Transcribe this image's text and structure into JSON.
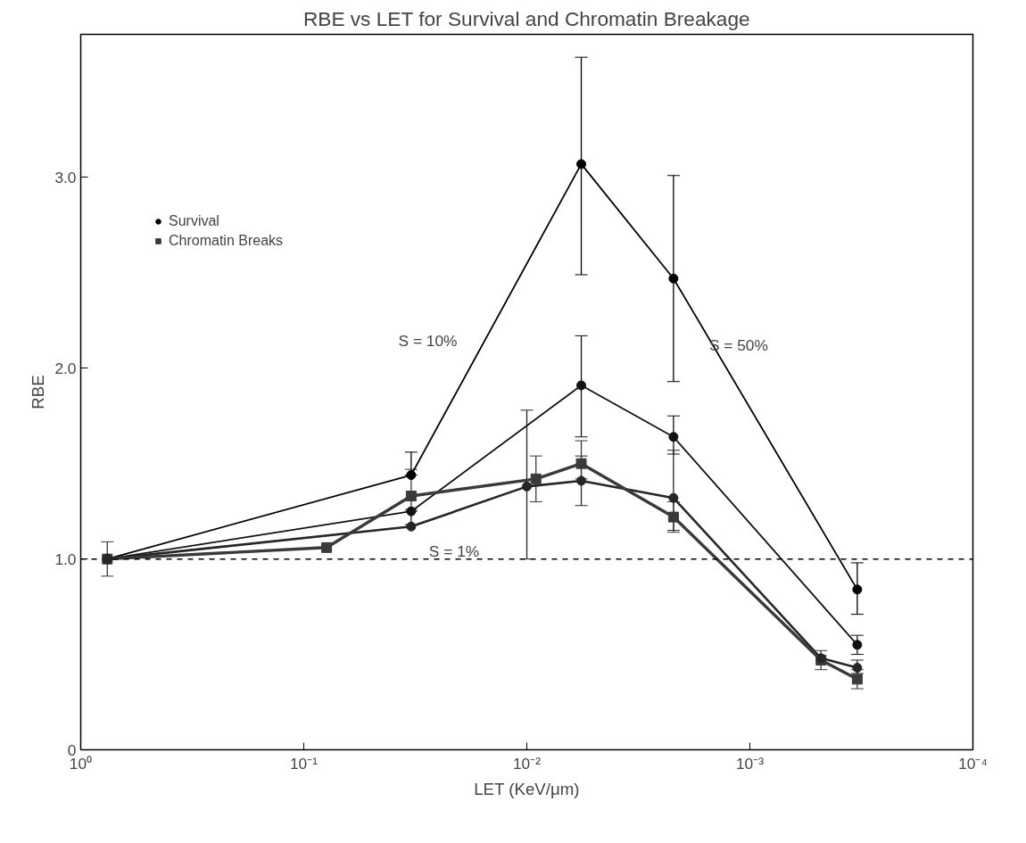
{
  "chart_data": {
    "type": "line",
    "title": "RBE vs LET for Survival and Chromatin Breakage",
    "xlabel": "LET (KeV/μm)",
    "ylabel": "RBE",
    "log": "x",
    "xlim": [
      1,
      0.0001
    ],
    "xticks": [
      {
        "value": 1,
        "label": "10⁰"
      },
      {
        "value": 0.1,
        "label": "10⁻¹"
      },
      {
        "value": 0.01,
        "label": "10⁻²"
      },
      {
        "value": 0.001,
        "label": "10⁻³"
      },
      {
        "value": 0.0001,
        "label": "10⁻⁴"
      }
    ],
    "ylim": [
      0,
      3.75
    ],
    "yticks": [
      0,
      {
        "value": 1,
        "label": "1.0"
      },
      {
        "value": 2,
        "label": "2.0"
      },
      {
        "value": 3,
        "label": "3.0"
      }
    ],
    "grid": false,
    "legend": "top left",
    "series": [
      {
        "name": "Survival",
        "color": "#000000",
        "marker": "circle",
        "x": [
          0.76,
          0.033,
          0.0057,
          0.0022,
          0.00033
        ],
        "values": [
          1.0,
          1.44,
          3.07,
          2.47,
          0.84
        ],
        "errors": [
          null,
          [
            1.44,
            1.56
          ],
          [
            2.49,
            3.63
          ],
          [
            1.93,
            3.01
          ],
          [
            0.71,
            0.98
          ]
        ]
      },
      {
        "color": "#121212",
        "marker": "circle",
        "x": [
          0.76,
          0.033,
          0.0057,
          0.0022,
          0.00033
        ],
        "values": [
          1.0,
          1.25,
          1.91,
          1.64,
          0.55
        ],
        "errors": [
          null,
          [
            1.18,
            1.25
          ],
          [
            1.64,
            2.17
          ],
          [
            1.55,
            1.75
          ],
          [
            0.5,
            0.6
          ]
        ]
      },
      {
        "color": "#262626",
        "marker": "circle",
        "x": [
          0.76,
          0.033,
          0.01,
          0.0057,
          0.0022,
          0.00048,
          0.00033
        ],
        "values": [
          1.0,
          1.17,
          1.38,
          1.41,
          1.32,
          0.48,
          0.43
        ],
        "errors": [
          null,
          null,
          [
            1.0,
            1.78
          ],
          [
            1.28,
            1.54
          ],
          [
            1.15,
            1.57
          ],
          null,
          [
            0.4,
            0.47
          ]
        ]
      },
      {
        "name": "Chromatin Breaks",
        "color": "#3a3a3a",
        "marker": "square",
        "x": [
          0.76,
          0.079,
          0.033,
          0.0091,
          0.0057,
          0.0022,
          0.00048,
          0.00033
        ],
        "values": [
          1.0,
          1.06,
          1.33,
          1.42,
          1.5,
          1.22,
          0.47,
          0.37
        ],
        "errors": [
          [
            0.91,
            1.09
          ],
          null,
          [
            1.26,
            1.47
          ],
          [
            1.3,
            1.54
          ],
          [
            1.42,
            1.62
          ],
          [
            1.14,
            1.3
          ],
          [
            0.42,
            0.52
          ],
          [
            0.32,
            0.42
          ]
        ]
      }
    ],
    "ref_lines": [
      {
        "axis": "y",
        "value": 1,
        "color": "#000000",
        "line_style": "dashed"
      }
    ],
    "annotations": [
      "S = 50%",
      "S = 10%",
      "S = 1%"
    ]
  }
}
